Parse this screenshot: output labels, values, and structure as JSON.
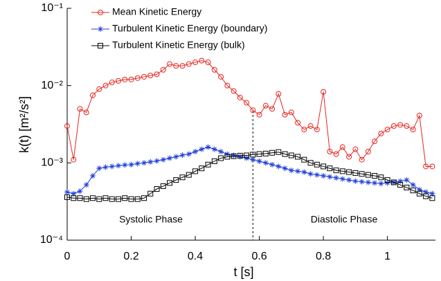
{
  "chart_data": {
    "type": "line",
    "x_label": "t [s]",
    "y_label": "k(t) [m²/s²]",
    "log_y": true,
    "legend": "top left",
    "annotations": [
      "Systolic Phase",
      "Diastolic Phase"
    ],
    "phase_boundary": 0.58,
    "xlim": [
      0,
      1.15
    ],
    "xticks": [
      0,
      0.2,
      0.4,
      0.6,
      0.8,
      1
    ],
    "ylim": [
      0.0001,
      0.1
    ],
    "yticks": [
      {
        "value": 0.0001,
        "label": "10⁻⁴"
      },
      {
        "value": 0.001,
        "label": "10⁻³"
      },
      {
        "value": 0.01,
        "label": "10⁻²"
      },
      {
        "value": 0.1,
        "label": "10⁻¹"
      }
    ],
    "x": [
      0,
      0.02,
      0.04,
      0.06,
      0.08,
      0.1,
      0.12,
      0.14,
      0.16,
      0.18,
      0.2,
      0.22,
      0.24,
      0.26,
      0.28,
      0.3,
      0.32,
      0.34,
      0.36,
      0.38,
      0.4,
      0.42,
      0.44,
      0.46,
      0.48,
      0.5,
      0.52,
      0.54,
      0.56,
      0.58,
      0.6,
      0.62,
      0.64,
      0.66,
      0.68,
      0.7,
      0.72,
      0.74,
      0.76,
      0.78,
      0.8,
      0.82,
      0.84,
      0.86,
      0.88,
      0.9,
      0.92,
      0.94,
      0.96,
      0.98,
      1,
      1.02,
      1.04,
      1.06,
      1.08,
      1.1,
      1.12,
      1.14
    ],
    "series": [
      {
        "name": "Mean Kinetic Energy",
        "color": "#e8231f",
        "marker": "circle",
        "values": [
          0.003,
          0.0011,
          0.005,
          0.0045,
          0.0075,
          0.009,
          0.01,
          0.011,
          0.0115,
          0.012,
          0.012,
          0.0125,
          0.013,
          0.0135,
          0.014,
          0.016,
          0.019,
          0.018,
          0.018,
          0.019,
          0.02,
          0.021,
          0.02,
          0.016,
          0.013,
          0.01,
          0.0085,
          0.007,
          0.006,
          0.0048,
          0.0042,
          0.0055,
          0.005,
          0.0078,
          0.0042,
          0.0045,
          0.0033,
          0.0027,
          0.003,
          0.0027,
          0.0083,
          0.0014,
          0.0013,
          0.0016,
          0.0012,
          0.0015,
          0.0011,
          0.0014,
          0.0019,
          0.0024,
          0.0027,
          0.003,
          0.0031,
          0.003,
          0.0027,
          0.0041,
          0.0009,
          0.0009
        ]
      },
      {
        "name": "Turbulent Kinetic Energy (boundary)",
        "color": "#1f3fd6",
        "marker": "star",
        "values": [
          0.00042,
          0.0004,
          0.00043,
          0.00052,
          0.00068,
          0.00085,
          0.00088,
          0.0009,
          0.00092,
          0.00094,
          0.00095,
          0.00098,
          0.001,
          0.00103,
          0.00106,
          0.0011,
          0.00115,
          0.0012,
          0.00126,
          0.0013,
          0.0014,
          0.0015,
          0.0016,
          0.0015,
          0.0014,
          0.0013,
          0.00125,
          0.0012,
          0.00115,
          0.0011,
          0.00105,
          0.001,
          0.00095,
          0.0009,
          0.00085,
          0.0008,
          0.00078,
          0.00076,
          0.00072,
          0.0007,
          0.00068,
          0.00066,
          0.00064,
          0.00062,
          0.0006,
          0.00058,
          0.00057,
          0.00056,
          0.00055,
          0.00054,
          0.00055,
          0.00056,
          0.00058,
          0.0006,
          0.00052,
          0.00045,
          0.00042,
          0.0004
        ]
      },
      {
        "name": "Turbulent Kinetic Energy (bulk)",
        "color": "#000000",
        "marker": "square",
        "values": [
          0.00036,
          0.00035,
          0.00035,
          0.00034,
          0.00035,
          0.00034,
          0.00035,
          0.00034,
          0.00034,
          0.00035,
          0.00034,
          0.00034,
          0.00035,
          0.0004,
          0.00046,
          0.0005,
          0.00055,
          0.0006,
          0.00065,
          0.0007,
          0.00078,
          0.00085,
          0.00095,
          0.00105,
          0.00115,
          0.0012,
          0.00122,
          0.00124,
          0.00125,
          0.00128,
          0.0013,
          0.00132,
          0.00135,
          0.00138,
          0.0013,
          0.00125,
          0.0012,
          0.0011,
          0.001,
          0.00095,
          0.0009,
          0.00085,
          0.0008,
          0.00078,
          0.00076,
          0.00074,
          0.00072,
          0.0007,
          0.00068,
          0.00065,
          0.0006,
          0.00056,
          0.00052,
          0.00048,
          0.00044,
          0.0004,
          0.00037,
          0.00035
        ]
      }
    ]
  }
}
